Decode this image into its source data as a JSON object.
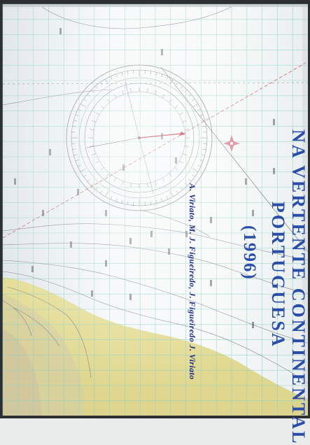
{
  "map": {
    "title_line1": "NA VERTENTE CONTINENTAL",
    "title_line2": "PORTUGUESA",
    "year": "(1996)",
    "authors": "A. Viriato, M. J. Figueiredo, J. Figueiredo J. Viriato",
    "colors": {
      "sea": "#eef3f6",
      "grid": "#8fd0c0",
      "land": "#e8de7a",
      "land_dark": "#cfc89a",
      "title": "#2a4ea8",
      "compass_arrow": "#c01a2a"
    },
    "icons": [
      "compass-rose-icon",
      "north-star-icon"
    ]
  }
}
